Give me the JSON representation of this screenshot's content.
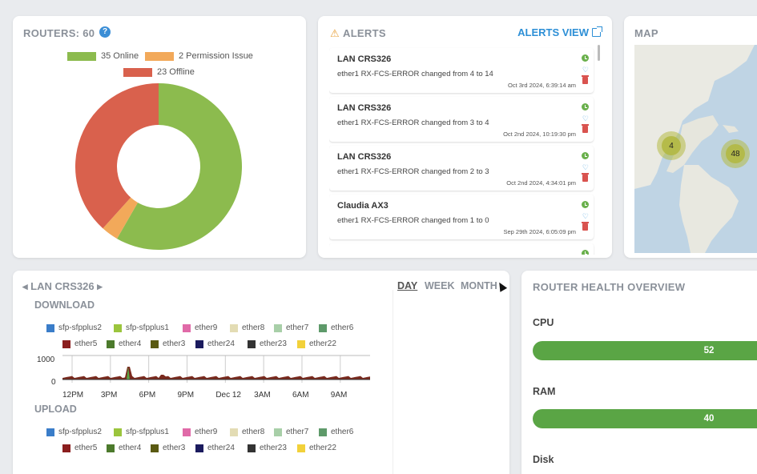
{
  "routers": {
    "title": "ROUTERS: 60",
    "help": "?",
    "legend": [
      {
        "label": "35 Online",
        "color": "#8cbb4e"
      },
      {
        "label": "2 Permission Issue",
        "color": "#f2a95a"
      },
      {
        "label": "23 Offline",
        "color": "#d9614d"
      }
    ],
    "chart_data": {
      "type": "pie",
      "categories": [
        "Online",
        "Permission Issue",
        "Offline"
      ],
      "values": [
        35,
        2,
        23
      ],
      "colors": [
        "#8cbb4e",
        "#f2a95a",
        "#d9614d"
      ]
    }
  },
  "alerts": {
    "title": "ALERTS",
    "view_label": "ALERTS VIEW",
    "items": [
      {
        "name": "LAN CRS326",
        "message": "ether1 RX-FCS-ERROR changed from 4 to 14",
        "time": "Oct 3rd 2024, 6:39:14 am"
      },
      {
        "name": "LAN CRS326",
        "message": "ether1 RX-FCS-ERROR changed from 3 to 4",
        "time": "Oct 2nd 2024, 10:19:30 pm"
      },
      {
        "name": "LAN CRS326",
        "message": "ether1 RX-FCS-ERROR changed from 2 to 3",
        "time": "Oct 2nd 2024, 4:34:01 pm"
      },
      {
        "name": "Claudia AX3",
        "message": "ether1 RX-FCS-ERROR changed from 1 to 0",
        "time": "Sep 29th 2024, 6:05:09 pm"
      }
    ]
  },
  "map": {
    "title": "MAP",
    "clusters": [
      {
        "label": "4"
      },
      {
        "label": "48"
      }
    ]
  },
  "traffic": {
    "router_name": "LAN CRS326",
    "prev_icon": "◂",
    "next_icon": "▸",
    "tabs": [
      {
        "label": "DAY"
      },
      {
        "label": "WEEK"
      },
      {
        "label": "MONTH"
      }
    ],
    "download_title": "DOWNLOAD",
    "upload_title": "UPLOAD",
    "interfaces_row1": [
      {
        "label": "sfp-sfpplus2",
        "color": "#3a7dc9"
      },
      {
        "label": "sfp-sfpplus1",
        "color": "#9bc53d"
      },
      {
        "label": "ether9",
        "color": "#e06aa8"
      },
      {
        "label": "ether8",
        "color": "#e3dcb4"
      },
      {
        "label": "ether7",
        "color": "#a8cfa8"
      },
      {
        "label": "ether6",
        "color": "#5e9a6a"
      }
    ],
    "interfaces_row2": [
      {
        "label": "ether5",
        "color": "#8b1e1e"
      },
      {
        "label": "ether4",
        "color": "#4c7a2c"
      },
      {
        "label": "ether3",
        "color": "#5a5a12"
      },
      {
        "label": "ether24",
        "color": "#1b1b5e"
      },
      {
        "label": "ether23",
        "color": "#333333"
      },
      {
        "label": "ether22",
        "color": "#f2d13a"
      }
    ],
    "download_chart": {
      "chart_data": {
        "type": "area",
        "x": [
          "12PM",
          "3PM",
          "6PM",
          "9PM",
          "Dec 12",
          "3AM",
          "6AM",
          "9AM"
        ],
        "y_ticks": [
          "1000",
          "0"
        ],
        "ylim": [
          0,
          1000
        ]
      }
    }
  },
  "health": {
    "title": "ROUTER HEALTH OVERVIEW",
    "metrics": [
      {
        "label": "CPU",
        "value": "52"
      },
      {
        "label": "RAM",
        "value": "40"
      },
      {
        "label": "Disk",
        "value": ""
      }
    ]
  }
}
